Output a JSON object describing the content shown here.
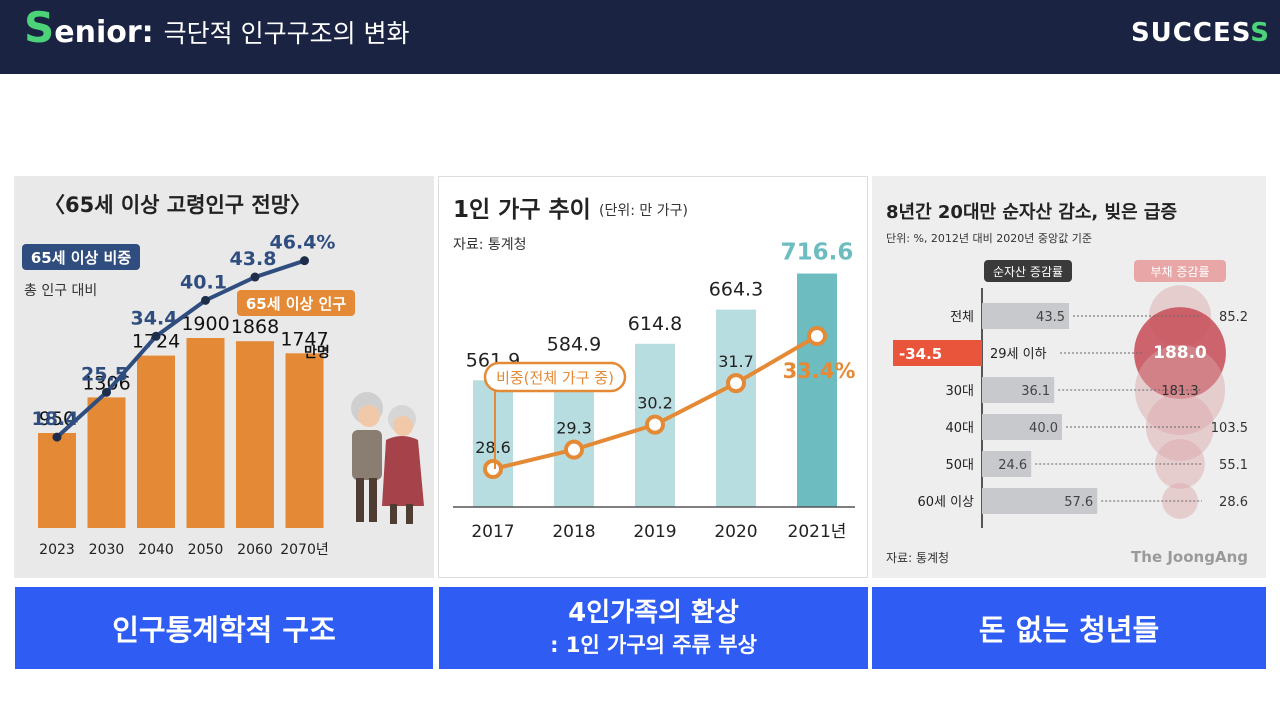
{
  "header": {
    "brand_initial": "S",
    "brand_rest": "enior:",
    "subtitle": "극단적 인구구조의 변화",
    "logo_main": "SUCCES",
    "logo_last": "S"
  },
  "colors": {
    "navy": "#1a2341",
    "green": "#4cd37a",
    "caption_blue": "#2f5cf2",
    "bar_orange": "#e48a36",
    "line_blue": "#2f4d7e",
    "teal_light": "#b8dde0",
    "teal_dark": "#6dbcc0",
    "red_debt": "#c9545e"
  },
  "panel1": {
    "title": "〈65세 이상 고령인구 전망〉",
    "line_label": "65세 이상 비중",
    "line_sub": "총 인구 대비",
    "bar_label": "65세 이상 인구",
    "unit": "만명",
    "years": [
      "2023",
      "2030",
      "2040",
      "2050",
      "2060",
      "2070년"
    ],
    "bar_labels": [
      "950",
      "1306",
      "1724",
      "1900",
      "1868",
      "1747"
    ],
    "pct_labels": [
      "18.4",
      "25.5",
      "34.4",
      "40.1",
      "43.8",
      "46.4%"
    ]
  },
  "panel2": {
    "title": "1인 가구 추이",
    "unit": "(단위: 만 가구)",
    "source": "자료: 통계청",
    "ratio_label": "비중(전체 가구 중)",
    "years": [
      "2017",
      "2018",
      "2019",
      "2020",
      "2021년"
    ],
    "bar_labels": [
      "561.9",
      "584.9",
      "614.8",
      "664.3",
      "716.6"
    ],
    "pct_labels": [
      "28.6",
      "29.3",
      "30.2",
      "31.7",
      "33.4%"
    ]
  },
  "panel3": {
    "title": "8년간 20대만 순자산 감소, 빚은 급증",
    "note": "단위: %, 2012년 대비 2020년 중앙값 기준",
    "legend_asset": "순자산 증감률",
    "legend_debt": "부채 증감률",
    "source": "자료: 통계청",
    "credit": "The JoongAng",
    "rows": [
      "전체",
      "29세 이하",
      "30대",
      "40대",
      "50대",
      "60세 이상"
    ],
    "asset_labels": [
      "43.5",
      "-34.5",
      "36.1",
      "40.0",
      "24.6",
      "57.6"
    ],
    "debt_labels": [
      "85.2",
      "188.0",
      "181.3",
      "103.5",
      "55.1",
      "28.6"
    ]
  },
  "chart_data": [
    {
      "type": "bar",
      "title": "〈65세 이상 고령인구 전망〉",
      "categories": [
        "2023",
        "2030",
        "2040",
        "2050",
        "2060",
        "2070"
      ],
      "series": [
        {
          "name": "65세 이상 인구",
          "values": [
            950,
            1306,
            1724,
            1900,
            1868,
            1747
          ]
        },
        {
          "name": "65세 이상 비중",
          "values": [
            18.4,
            25.5,
            34.4,
            40.1,
            43.8,
            46.4
          ]
        }
      ]
    },
    {
      "type": "bar",
      "title": "1인 가구 추이",
      "categories": [
        "2017",
        "2018",
        "2019",
        "2020",
        "2021"
      ],
      "series": [
        {
          "name": "1인 가구",
          "values": [
            561.9,
            584.9,
            614.8,
            664.3,
            716.6
          ]
        },
        {
          "name": "비중(전체 가구 중)",
          "values": [
            28.6,
            29.3,
            30.2,
            31.7,
            33.4
          ]
        }
      ]
    },
    {
      "type": "bar",
      "title": "8년간 20대만 순자산 감소, 빚은 급증",
      "categories": [
        "전체",
        "29세 이하",
        "30대",
        "40대",
        "50대",
        "60세 이상"
      ],
      "series": [
        {
          "name": "순자산 증감률",
          "values": [
            43.5,
            -34.5,
            36.1,
            40.0,
            24.6,
            57.6
          ]
        },
        {
          "name": "부채 증감률",
          "values": [
            85.2,
            188.0,
            181.3,
            103.5,
            55.1,
            28.6
          ]
        }
      ]
    }
  ],
  "captions": {
    "c1": "인구통계학적 구조",
    "c2_line1": "4인가족의 환상",
    "c2_line2": ": 1인 가구의 주류 부상",
    "c3": "돈 없는 청년들"
  }
}
